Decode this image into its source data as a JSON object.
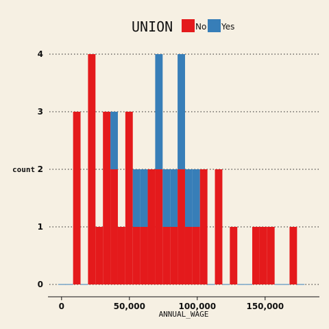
{
  "chart_data": {
    "type": "bar",
    "xlabel": "ANNUAL_WAGE",
    "ylabel": "count",
    "xlim": [
      -10000,
      190000
    ],
    "ylim": [
      0,
      4
    ],
    "x_ticks": [
      {
        "value": 0,
        "label": "0"
      },
      {
        "value": 50000,
        "label": "50,000"
      },
      {
        "value": 100000,
        "label": "100,000"
      },
      {
        "value": 150000,
        "label": "150,000"
      }
    ],
    "y_ticks": [
      {
        "value": 0,
        "label": "0"
      },
      {
        "value": 1,
        "label": "1"
      },
      {
        "value": 2,
        "label": "2"
      },
      {
        "value": 3,
        "label": "3"
      },
      {
        "value": 4,
        "label": "4"
      }
    ],
    "grid": "horizontal-dotted",
    "stacked": true,
    "legend": {
      "title": "UNION",
      "position": "top-center",
      "entries": [
        {
          "name": "No",
          "color": "#e41a1c"
        },
        {
          "name": "Yes",
          "color": "#377eb8"
        }
      ]
    },
    "bin_width": 5500,
    "bin_starts": [
      -2500,
      3000,
      8500,
      14000,
      19500,
      25000,
      30500,
      36000,
      41500,
      47000,
      52500,
      58000,
      63500,
      69000,
      74500,
      80000,
      85500,
      91000,
      96500,
      102000,
      107500,
      113000,
      118500,
      124000,
      129500,
      135000,
      140500,
      146000,
      151500,
      157000,
      162500,
      168000,
      173500
    ],
    "series": [
      {
        "name": "No",
        "color": "#e41a1c",
        "values": [
          0,
          0,
          3,
          0,
          4,
          1,
          3,
          2,
          1,
          3,
          1,
          1,
          2,
          2,
          1,
          1,
          2,
          1,
          1,
          2,
          0,
          2,
          0,
          1,
          0,
          0,
          1,
          1,
          1,
          0,
          0,
          1,
          0
        ]
      },
      {
        "name": "Yes",
        "color": "#377eb8",
        "values": [
          0,
          0,
          0,
          0,
          0,
          0,
          0,
          1,
          0,
          0,
          1,
          1,
          0,
          2,
          1,
          1,
          2,
          1,
          1,
          0,
          0,
          0,
          0,
          0,
          0,
          0,
          0,
          0,
          0,
          0,
          0,
          0,
          0
        ]
      }
    ]
  }
}
